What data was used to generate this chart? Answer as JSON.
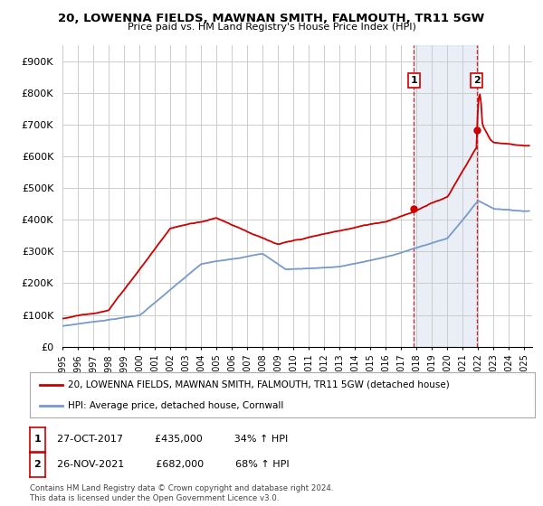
{
  "title": "20, LOWENNA FIELDS, MAWNAN SMITH, FALMOUTH, TR11 5GW",
  "subtitle": "Price paid vs. HM Land Registry's House Price Index (HPI)",
  "ylabel_ticks": [
    "£0",
    "£100K",
    "£200K",
    "£300K",
    "£400K",
    "£500K",
    "£600K",
    "£700K",
    "£800K",
    "£900K"
  ],
  "ytick_values": [
    0,
    100000,
    200000,
    300000,
    400000,
    500000,
    600000,
    700000,
    800000,
    900000
  ],
  "ylim": [
    0,
    950000
  ],
  "legend_line1": "20, LOWENNA FIELDS, MAWNAN SMITH, FALMOUTH, TR11 5GW (detached house)",
  "legend_line2": "HPI: Average price, detached house, Cornwall",
  "annotation1_label": "1",
  "annotation1_date": "27-OCT-2017",
  "annotation1_price": "£435,000",
  "annotation1_hpi": "34% ↑ HPI",
  "annotation2_label": "2",
  "annotation2_date": "26-NOV-2021",
  "annotation2_price": "£682,000",
  "annotation2_hpi": "68% ↑ HPI",
  "footer": "Contains HM Land Registry data © Crown copyright and database right 2024.\nThis data is licensed under the Open Government Licence v3.0.",
  "line1_color": "#cc0000",
  "line2_color": "#7799cc",
  "dashed_vline_color": "#cc0000",
  "background_color": "#ffffff",
  "grid_color": "#cccccc",
  "sale1_x": 2017.82,
  "sale1_y": 435000,
  "sale2_x": 2021.9,
  "sale2_y": 682000,
  "xmin": 1995,
  "xmax": 2025.5
}
